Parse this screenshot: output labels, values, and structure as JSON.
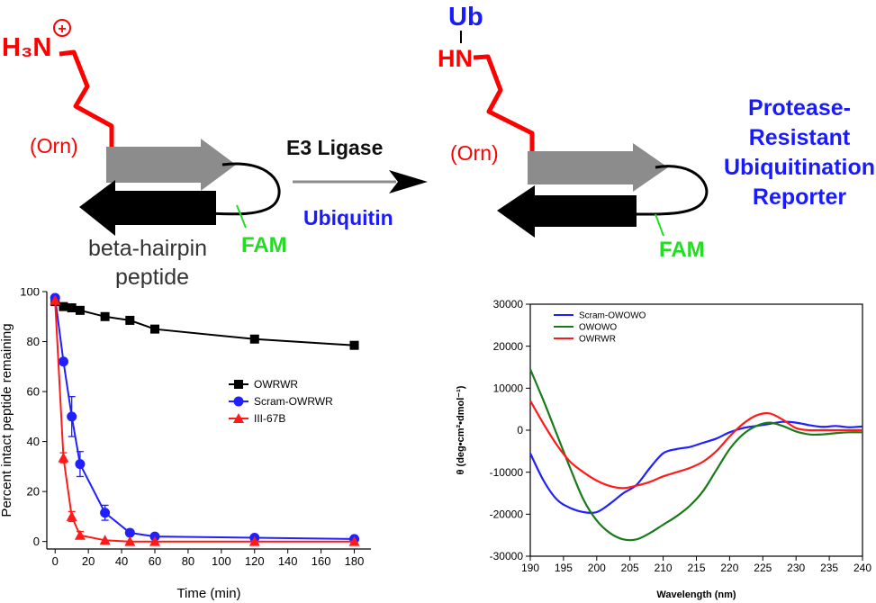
{
  "scheme": {
    "left": {
      "amine": "H₃N",
      "charge": "+",
      "orn_label": "(Orn)",
      "fam_label": "FAM",
      "peptide_label_line1": "beta-hairpin",
      "peptide_label_line2": "peptide"
    },
    "arrow": {
      "enzyme": "E3 Ligase",
      "cofactor": "Ubiquitin"
    },
    "right": {
      "ub_label": "Ub",
      "nh_label": "HN",
      "orn_label": "(Orn)",
      "fam_label": "FAM"
    },
    "product_title": [
      "Protease-",
      "Resistant",
      "Ubiquitination",
      "Reporter"
    ]
  },
  "colors": {
    "red": "#ff0000",
    "blue": "#1a1aff",
    "green": "#22dd22",
    "grey_strand": "#8c8c8c",
    "black": "#000000",
    "cd_blue": "#1f1fff",
    "cd_green": "#1a7a1a",
    "cd_red": "#ff1a1a"
  },
  "chart_data": [
    {
      "type": "line",
      "xlabel": "Time (min)",
      "ylabel": "Percent intact peptide remaining",
      "xlim": [
        -5,
        190
      ],
      "ylim": [
        -3,
        100
      ],
      "xticks": [
        0,
        20,
        40,
        60,
        80,
        100,
        120,
        140,
        160,
        180
      ],
      "yticks": [
        0,
        20,
        40,
        60,
        80,
        100
      ],
      "legend_position": "center-right",
      "series": [
        {
          "name": "OWRWR",
          "marker": "square",
          "color": "#000000",
          "x": [
            0,
            5,
            10,
            15,
            30,
            45,
            60,
            120,
            180
          ],
          "y": [
            96,
            94,
            93.5,
            92.5,
            90,
            88.5,
            85,
            81,
            78.5
          ],
          "err": [
            0,
            0,
            0,
            0,
            0,
            0,
            0,
            0,
            0
          ]
        },
        {
          "name": "Scram-OWRWR",
          "marker": "circle",
          "color": "#1f1fff",
          "x": [
            0,
            5,
            10,
            15,
            30,
            45,
            60,
            120,
            180
          ],
          "y": [
            97.5,
            72,
            50,
            31,
            11.5,
            3.5,
            2,
            1.5,
            1
          ],
          "err": [
            0,
            0,
            8,
            5,
            3,
            0,
            0,
            0,
            0
          ]
        },
        {
          "name": "III-67B",
          "marker": "triangle",
          "color": "#ff1a1a",
          "x": [
            0,
            5,
            10,
            15,
            30,
            45,
            60,
            120,
            180
          ],
          "y": [
            96.5,
            33.5,
            10,
            2.5,
            0.5,
            0,
            0,
            0,
            0
          ],
          "err": [
            0,
            2,
            2,
            1.5,
            0,
            0,
            0,
            0,
            0
          ]
        }
      ]
    },
    {
      "type": "line",
      "xlabel": "Wavelength (nm)",
      "ylabel": "θ (deg•cm²•dmol⁻¹)",
      "xlim": [
        190,
        240
      ],
      "ylim": [
        -30000,
        30000
      ],
      "xticks": [
        190,
        195,
        200,
        205,
        210,
        215,
        220,
        225,
        230,
        235,
        240
      ],
      "yticks": [
        -30000,
        -20000,
        -10000,
        0,
        10000,
        20000,
        30000
      ],
      "legend_position": "top-left",
      "series": [
        {
          "name": "Scram-OWOWO",
          "color": "#1f1fff",
          "x": [
            190,
            192,
            194,
            196,
            198,
            200,
            202,
            204,
            206,
            208,
            210,
            212,
            214,
            216,
            218,
            220,
            222,
            224,
            226,
            228,
            230,
            232,
            234,
            236,
            238,
            240
          ],
          "y": [
            -5500,
            -12000,
            -16500,
            -18500,
            -19500,
            -19500,
            -17500,
            -15000,
            -13000,
            -9000,
            -5500,
            -4500,
            -4000,
            -3000,
            -2000,
            -500,
            500,
            1000,
            1500,
            2000,
            1800,
            1200,
            800,
            1000,
            700,
            900
          ]
        },
        {
          "name": "OWOWO",
          "color": "#1a7a1a",
          "x": [
            190,
            192,
            194,
            196,
            198,
            200,
            202,
            204,
            206,
            208,
            210,
            212,
            214,
            216,
            218,
            220,
            222,
            224,
            226,
            228,
            230,
            232,
            234,
            236,
            238,
            240
          ],
          "y": [
            14500,
            7000,
            -1000,
            -9000,
            -16500,
            -21500,
            -24500,
            -26000,
            -26000,
            -24500,
            -22500,
            -20500,
            -18000,
            -14500,
            -9500,
            -4500,
            -1000,
            1000,
            1800,
            1000,
            -300,
            -1000,
            -1000,
            -700,
            -500,
            -500
          ]
        },
        {
          "name": "OWRWR",
          "color": "#ff1a1a",
          "x": [
            190,
            192,
            194,
            196,
            198,
            200,
            202,
            204,
            206,
            208,
            210,
            212,
            214,
            216,
            218,
            220,
            222,
            224,
            226,
            228,
            230,
            232,
            234,
            236,
            238,
            240
          ],
          "y": [
            7000,
            1500,
            -3500,
            -7500,
            -10000,
            -12000,
            -13300,
            -13800,
            -13200,
            -12300,
            -11000,
            -10000,
            -9000,
            -7500,
            -5000,
            -1500,
            1500,
            3500,
            4000,
            2500,
            500,
            0,
            0,
            0,
            0,
            0
          ]
        }
      ]
    }
  ]
}
